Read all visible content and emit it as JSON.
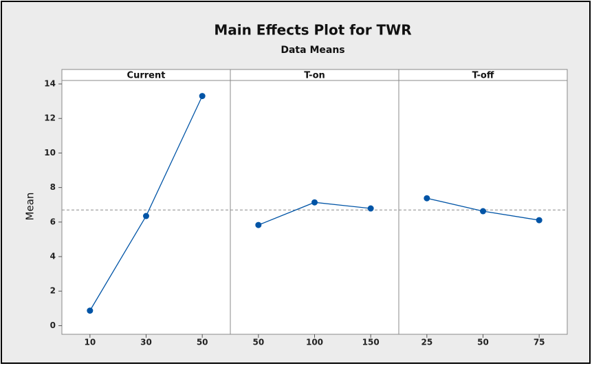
{
  "chart_data": {
    "type": "line",
    "title": "Main Effects Plot for TWR",
    "subtitle": "Data Means",
    "y_label": "Mean",
    "color": "#0054a6",
    "ylim": [
      -0.5,
      14.2
    ],
    "yticks": [
      0,
      2,
      4,
      6,
      8,
      10,
      12,
      14
    ],
    "reference_line": 6.7,
    "panels": [
      {
        "title": "Current",
        "categories": [
          "10",
          "30",
          "50"
        ],
        "values": [
          0.87,
          6.35,
          13.3
        ]
      },
      {
        "title": "T-on",
        "categories": [
          "50",
          "100",
          "150"
        ],
        "values": [
          5.83,
          7.14,
          6.79
        ]
      },
      {
        "title": "T-off",
        "categories": [
          "25",
          "50",
          "75"
        ],
        "values": [
          7.38,
          6.63,
          6.11
        ]
      }
    ]
  }
}
